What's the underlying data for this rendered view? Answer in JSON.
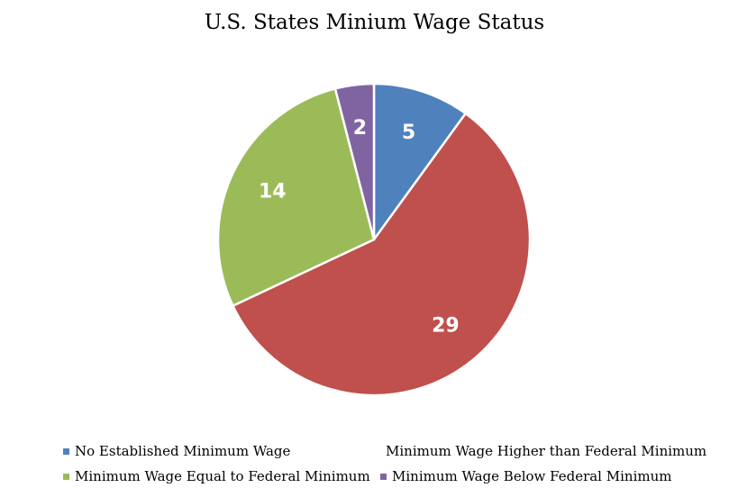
{
  "chart_data": {
    "type": "pie",
    "title": "U.S. States Minium Wage Status",
    "slices": [
      {
        "label": "No Established Minimum Wage",
        "value": 5,
        "color": "#4f81bd"
      },
      {
        "label": "Minimum Wage Higher than Federal Minimum",
        "value": 29,
        "color": "#c0504d"
      },
      {
        "label": "Minimum Wage Equal to Federal Minimum",
        "value": 14,
        "color": "#9bbb59"
      },
      {
        "label": "Minimum Wage Below Federal Minimum",
        "value": 2,
        "color": "#8064a2"
      }
    ],
    "legend_position": "bottom"
  }
}
